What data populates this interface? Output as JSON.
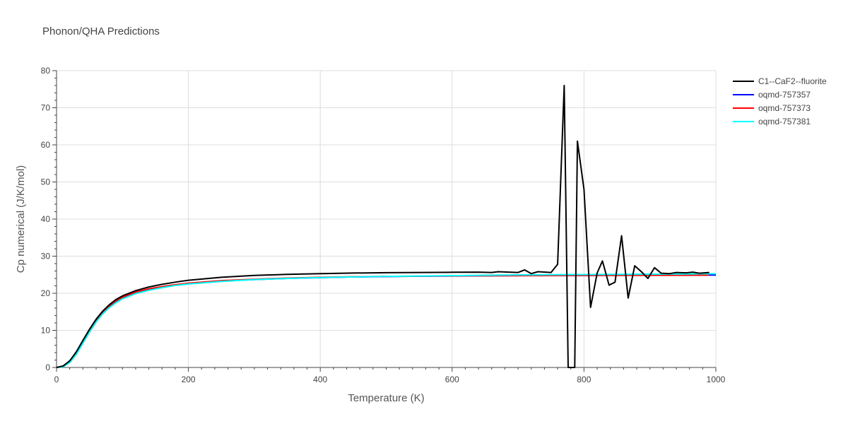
{
  "chart_data": {
    "type": "line",
    "title": "Phonon/QHA Predictions",
    "xlabel": "Temperature (K)",
    "ylabel": "Cp numerical (J/K/mol)",
    "xlim": [
      0,
      1000
    ],
    "ylim": [
      0,
      80
    ],
    "x_ticks": [
      "0",
      "200",
      "400",
      "600",
      "800",
      "1000"
    ],
    "y_ticks": [
      "0",
      "10",
      "20",
      "30",
      "40",
      "50",
      "60",
      "70",
      "80"
    ],
    "grid": true,
    "legend_position": "top-right",
    "series": [
      {
        "name": "C1--CaF2--fluorite",
        "color": "#000000",
        "points": [
          [
            0,
            0
          ],
          [
            10,
            0.4
          ],
          [
            20,
            1.8
          ],
          [
            30,
            4.2
          ],
          [
            40,
            7.3
          ],
          [
            50,
            10.3
          ],
          [
            60,
            13.0
          ],
          [
            70,
            15.2
          ],
          [
            80,
            16.9
          ],
          [
            90,
            18.3
          ],
          [
            100,
            19.3
          ],
          [
            120,
            20.7
          ],
          [
            140,
            21.7
          ],
          [
            160,
            22.4
          ],
          [
            180,
            23.0
          ],
          [
            200,
            23.5
          ],
          [
            250,
            24.3
          ],
          [
            300,
            24.8
          ],
          [
            350,
            25.1
          ],
          [
            400,
            25.3
          ],
          [
            450,
            25.45
          ],
          [
            500,
            25.55
          ],
          [
            550,
            25.6
          ],
          [
            600,
            25.65
          ],
          [
            640,
            25.7
          ],
          [
            660,
            25.6
          ],
          [
            670,
            25.8
          ],
          [
            700,
            25.6
          ],
          [
            710,
            26.3
          ],
          [
            720,
            25.3
          ],
          [
            730,
            25.8
          ],
          [
            750,
            25.6
          ],
          [
            760,
            27.8
          ],
          [
            770,
            76.0
          ],
          [
            776,
            0
          ],
          [
            786,
            0
          ],
          [
            790,
            61.0
          ],
          [
            800,
            48.0
          ],
          [
            810,
            16.2
          ],
          [
            820,
            25.5
          ],
          [
            828,
            28.7
          ],
          [
            838,
            22.2
          ],
          [
            847,
            23.0
          ],
          [
            857,
            35.5
          ],
          [
            867,
            18.7
          ],
          [
            877,
            27.4
          ],
          [
            887,
            25.8
          ],
          [
            897,
            24.0
          ],
          [
            907,
            26.9
          ],
          [
            917,
            25.4
          ],
          [
            930,
            25.3
          ],
          [
            940,
            25.6
          ],
          [
            955,
            25.5
          ],
          [
            965,
            25.7
          ],
          [
            975,
            25.4
          ],
          [
            990,
            25.6
          ]
        ]
      },
      {
        "name": "oqmd-757357",
        "color": "#0000ff",
        "points": [
          [
            0,
            0
          ],
          [
            10,
            0.25
          ],
          [
            20,
            1.5
          ],
          [
            30,
            3.8
          ],
          [
            40,
            6.8
          ],
          [
            50,
            9.8
          ],
          [
            60,
            12.5
          ],
          [
            70,
            14.7
          ],
          [
            80,
            16.4
          ],
          [
            90,
            17.7
          ],
          [
            100,
            18.7
          ],
          [
            120,
            20.1
          ],
          [
            140,
            21.0
          ],
          [
            160,
            21.7
          ],
          [
            180,
            22.2
          ],
          [
            200,
            22.6
          ],
          [
            250,
            23.3
          ],
          [
            300,
            23.7
          ],
          [
            350,
            24.0
          ],
          [
            400,
            24.2
          ],
          [
            450,
            24.4
          ],
          [
            500,
            24.5
          ],
          [
            550,
            24.6
          ],
          [
            600,
            24.65
          ],
          [
            650,
            24.7
          ],
          [
            700,
            24.75
          ],
          [
            750,
            24.8
          ],
          [
            800,
            24.8
          ],
          [
            850,
            24.85
          ],
          [
            900,
            24.85
          ],
          [
            950,
            24.9
          ],
          [
            1000,
            24.9
          ]
        ]
      },
      {
        "name": "oqmd-757373",
        "color": "#ff0000",
        "points": [
          [
            0,
            0
          ],
          [
            10,
            0.3
          ],
          [
            20,
            1.7
          ],
          [
            30,
            4.1
          ],
          [
            40,
            7.1
          ],
          [
            50,
            10.1
          ],
          [
            60,
            12.8
          ],
          [
            70,
            14.9
          ],
          [
            80,
            16.6
          ],
          [
            90,
            17.9
          ],
          [
            100,
            18.9
          ],
          [
            120,
            20.3
          ],
          [
            140,
            21.2
          ],
          [
            160,
            21.8
          ],
          [
            180,
            22.3
          ],
          [
            200,
            22.7
          ],
          [
            250,
            23.4
          ],
          [
            300,
            23.8
          ],
          [
            350,
            24.1
          ],
          [
            400,
            24.3
          ],
          [
            450,
            24.45
          ],
          [
            500,
            24.55
          ],
          [
            550,
            24.62
          ],
          [
            600,
            24.67
          ],
          [
            650,
            24.72
          ],
          [
            700,
            24.76
          ],
          [
            750,
            24.79
          ],
          [
            800,
            24.8
          ],
          [
            850,
            24.82
          ],
          [
            900,
            24.84
          ],
          [
            950,
            24.86
          ],
          [
            990,
            24.87
          ]
        ]
      },
      {
        "name": "oqmd-757381",
        "color": "#00ffff",
        "points": [
          [
            0,
            0
          ],
          [
            10,
            0.2
          ],
          [
            20,
            1.3
          ],
          [
            30,
            3.5
          ],
          [
            40,
            6.5
          ],
          [
            50,
            9.5
          ],
          [
            60,
            12.2
          ],
          [
            70,
            14.4
          ],
          [
            80,
            16.1
          ],
          [
            90,
            17.4
          ],
          [
            100,
            18.5
          ],
          [
            120,
            19.9
          ],
          [
            140,
            20.8
          ],
          [
            160,
            21.5
          ],
          [
            180,
            22.1
          ],
          [
            200,
            22.5
          ],
          [
            250,
            23.2
          ],
          [
            300,
            23.7
          ],
          [
            350,
            24.0
          ],
          [
            400,
            24.25
          ],
          [
            450,
            24.4
          ],
          [
            500,
            24.55
          ],
          [
            550,
            24.65
          ],
          [
            600,
            24.75
          ],
          [
            650,
            24.85
          ],
          [
            700,
            24.95
          ],
          [
            750,
            25.0
          ],
          [
            800,
            25.05
          ],
          [
            850,
            25.1
          ],
          [
            900,
            25.15
          ],
          [
            950,
            25.2
          ],
          [
            1000,
            25.25
          ]
        ]
      }
    ]
  }
}
